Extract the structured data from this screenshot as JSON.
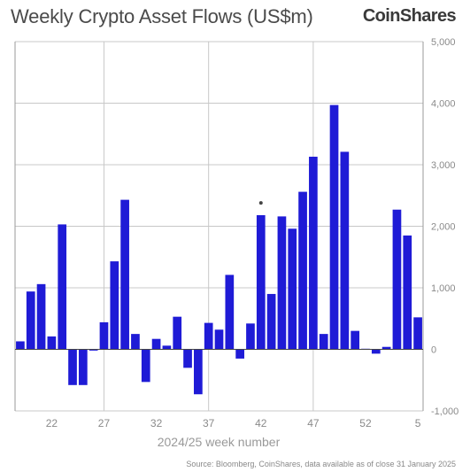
{
  "title": "Weekly Crypto Asset Flows (US$m)",
  "brand": "CoinShares",
  "source": "Source: Bloomberg, CoinShares, data available as of close 31 January 2025",
  "colors": {
    "bar": "#1f1bd6",
    "grid": "#c8c8c8",
    "axis": "#9a9a9a",
    "text": "#8a8a8a"
  },
  "chart_data": {
    "type": "bar",
    "xlabel": "2024/25 week number",
    "ylabel": "",
    "ylim": [
      -1000,
      5000
    ],
    "yticks": [
      "-1,000",
      "0",
      "1,000",
      "2,000",
      "3,000",
      "4,000",
      "5,000"
    ],
    "ytick_values": [
      -1000,
      0,
      1000,
      2000,
      3000,
      4000,
      5000
    ],
    "xtick_labels": [
      {
        "index": 3,
        "label": "22"
      },
      {
        "index": 8,
        "label": "27"
      },
      {
        "index": 13,
        "label": "32"
      },
      {
        "index": 18,
        "label": "37"
      },
      {
        "index": 23,
        "label": "42"
      },
      {
        "index": 28,
        "label": "47"
      },
      {
        "index": 33,
        "label": "52"
      },
      {
        "index": 38,
        "label": "5"
      }
    ],
    "grid": true,
    "vertical_gridlines_at_index": [
      8.5,
      18.5,
      28.5
    ],
    "annotation_dot": {
      "index": 23,
      "value": 2380
    },
    "values": [
      130,
      940,
      1060,
      210,
      2030,
      -580,
      -580,
      -20,
      440,
      1430,
      2430,
      250,
      -530,
      170,
      60,
      530,
      -300,
      -730,
      430,
      320,
      1210,
      -150,
      420,
      2180,
      900,
      2160,
      1960,
      2560,
      3130,
      250,
      3970,
      3210,
      300,
      10,
      -70,
      40,
      2270,
      1850,
      520
    ]
  }
}
